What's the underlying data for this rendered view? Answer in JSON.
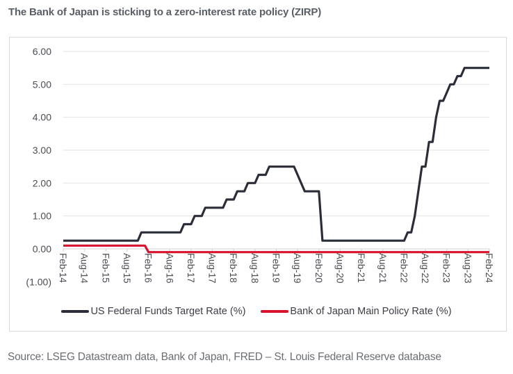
{
  "title": "The Bank of Japan is sticking to a zero-interest rate policy (ZIRP)",
  "source": "Source: LSEG Datastream data, Bank of Japan, FRED – St. Louis Federal Reserve database",
  "chart_data": {
    "type": "line",
    "title": "",
    "xlabel": "",
    "ylabel": "",
    "ylim": [
      -1,
      6
    ],
    "xlim": [
      "2014-02",
      "2024-02"
    ],
    "y_ticks": [
      "(1.00)",
      "0.00",
      "1.00",
      "2.00",
      "3.00",
      "4.00",
      "5.00",
      "6.00"
    ],
    "y_tick_values": [
      -1,
      0,
      1,
      2,
      3,
      4,
      5,
      6
    ],
    "x_ticks": [
      "Feb-14",
      "Aug-14",
      "Feb-15",
      "Aug-15",
      "Feb-16",
      "Aug-16",
      "Feb-17",
      "Aug-17",
      "Feb-18",
      "Aug-18",
      "Feb-19",
      "Aug-19",
      "Feb-20",
      "Aug-20",
      "Feb-21",
      "Aug-21",
      "Feb-22",
      "Aug-22",
      "Feb-23",
      "Aug-23",
      "Feb-24"
    ],
    "grid": true,
    "legend_position": "bottom",
    "series": [
      {
        "name": "US Federal Funds Target Rate (%)",
        "color": "#2b2d38",
        "points": [
          [
            "2014-02",
            0.25
          ],
          [
            "2015-11",
            0.25
          ],
          [
            "2015-12",
            0.5
          ],
          [
            "2016-11",
            0.5
          ],
          [
            "2016-12",
            0.75
          ],
          [
            "2017-02",
            0.75
          ],
          [
            "2017-03",
            1.0
          ],
          [
            "2017-05",
            1.0
          ],
          [
            "2017-06",
            1.25
          ],
          [
            "2017-11",
            1.25
          ],
          [
            "2017-12",
            1.5
          ],
          [
            "2018-02",
            1.5
          ],
          [
            "2018-03",
            1.75
          ],
          [
            "2018-05",
            1.75
          ],
          [
            "2018-06",
            2.0
          ],
          [
            "2018-08",
            2.0
          ],
          [
            "2018-09",
            2.25
          ],
          [
            "2018-11",
            2.25
          ],
          [
            "2018-12",
            2.5
          ],
          [
            "2019-07",
            2.5
          ],
          [
            "2019-10",
            1.75
          ],
          [
            "2020-02",
            1.75
          ],
          [
            "2020-03",
            0.25
          ],
          [
            "2022-02",
            0.25
          ],
          [
            "2022-03",
            0.5
          ],
          [
            "2022-04",
            0.5
          ],
          [
            "2022-05",
            1.0
          ],
          [
            "2022-06",
            1.75
          ],
          [
            "2022-07",
            2.5
          ],
          [
            "2022-08",
            2.5
          ],
          [
            "2022-09",
            3.25
          ],
          [
            "2022-10",
            3.25
          ],
          [
            "2022-11",
            4.0
          ],
          [
            "2022-12",
            4.5
          ],
          [
            "2023-01",
            4.5
          ],
          [
            "2023-02",
            4.75
          ],
          [
            "2023-03",
            5.0
          ],
          [
            "2023-04",
            5.0
          ],
          [
            "2023-05",
            5.25
          ],
          [
            "2023-06",
            5.25
          ],
          [
            "2023-07",
            5.5
          ],
          [
            "2024-02",
            5.5
          ]
        ]
      },
      {
        "name": "Bank of Japan Main Policy Rate (%)",
        "color": "#d7132e",
        "points": [
          [
            "2014-02",
            0.1
          ],
          [
            "2016-01",
            0.1
          ],
          [
            "2016-02",
            -0.1
          ],
          [
            "2024-02",
            -0.1
          ]
        ]
      }
    ]
  }
}
